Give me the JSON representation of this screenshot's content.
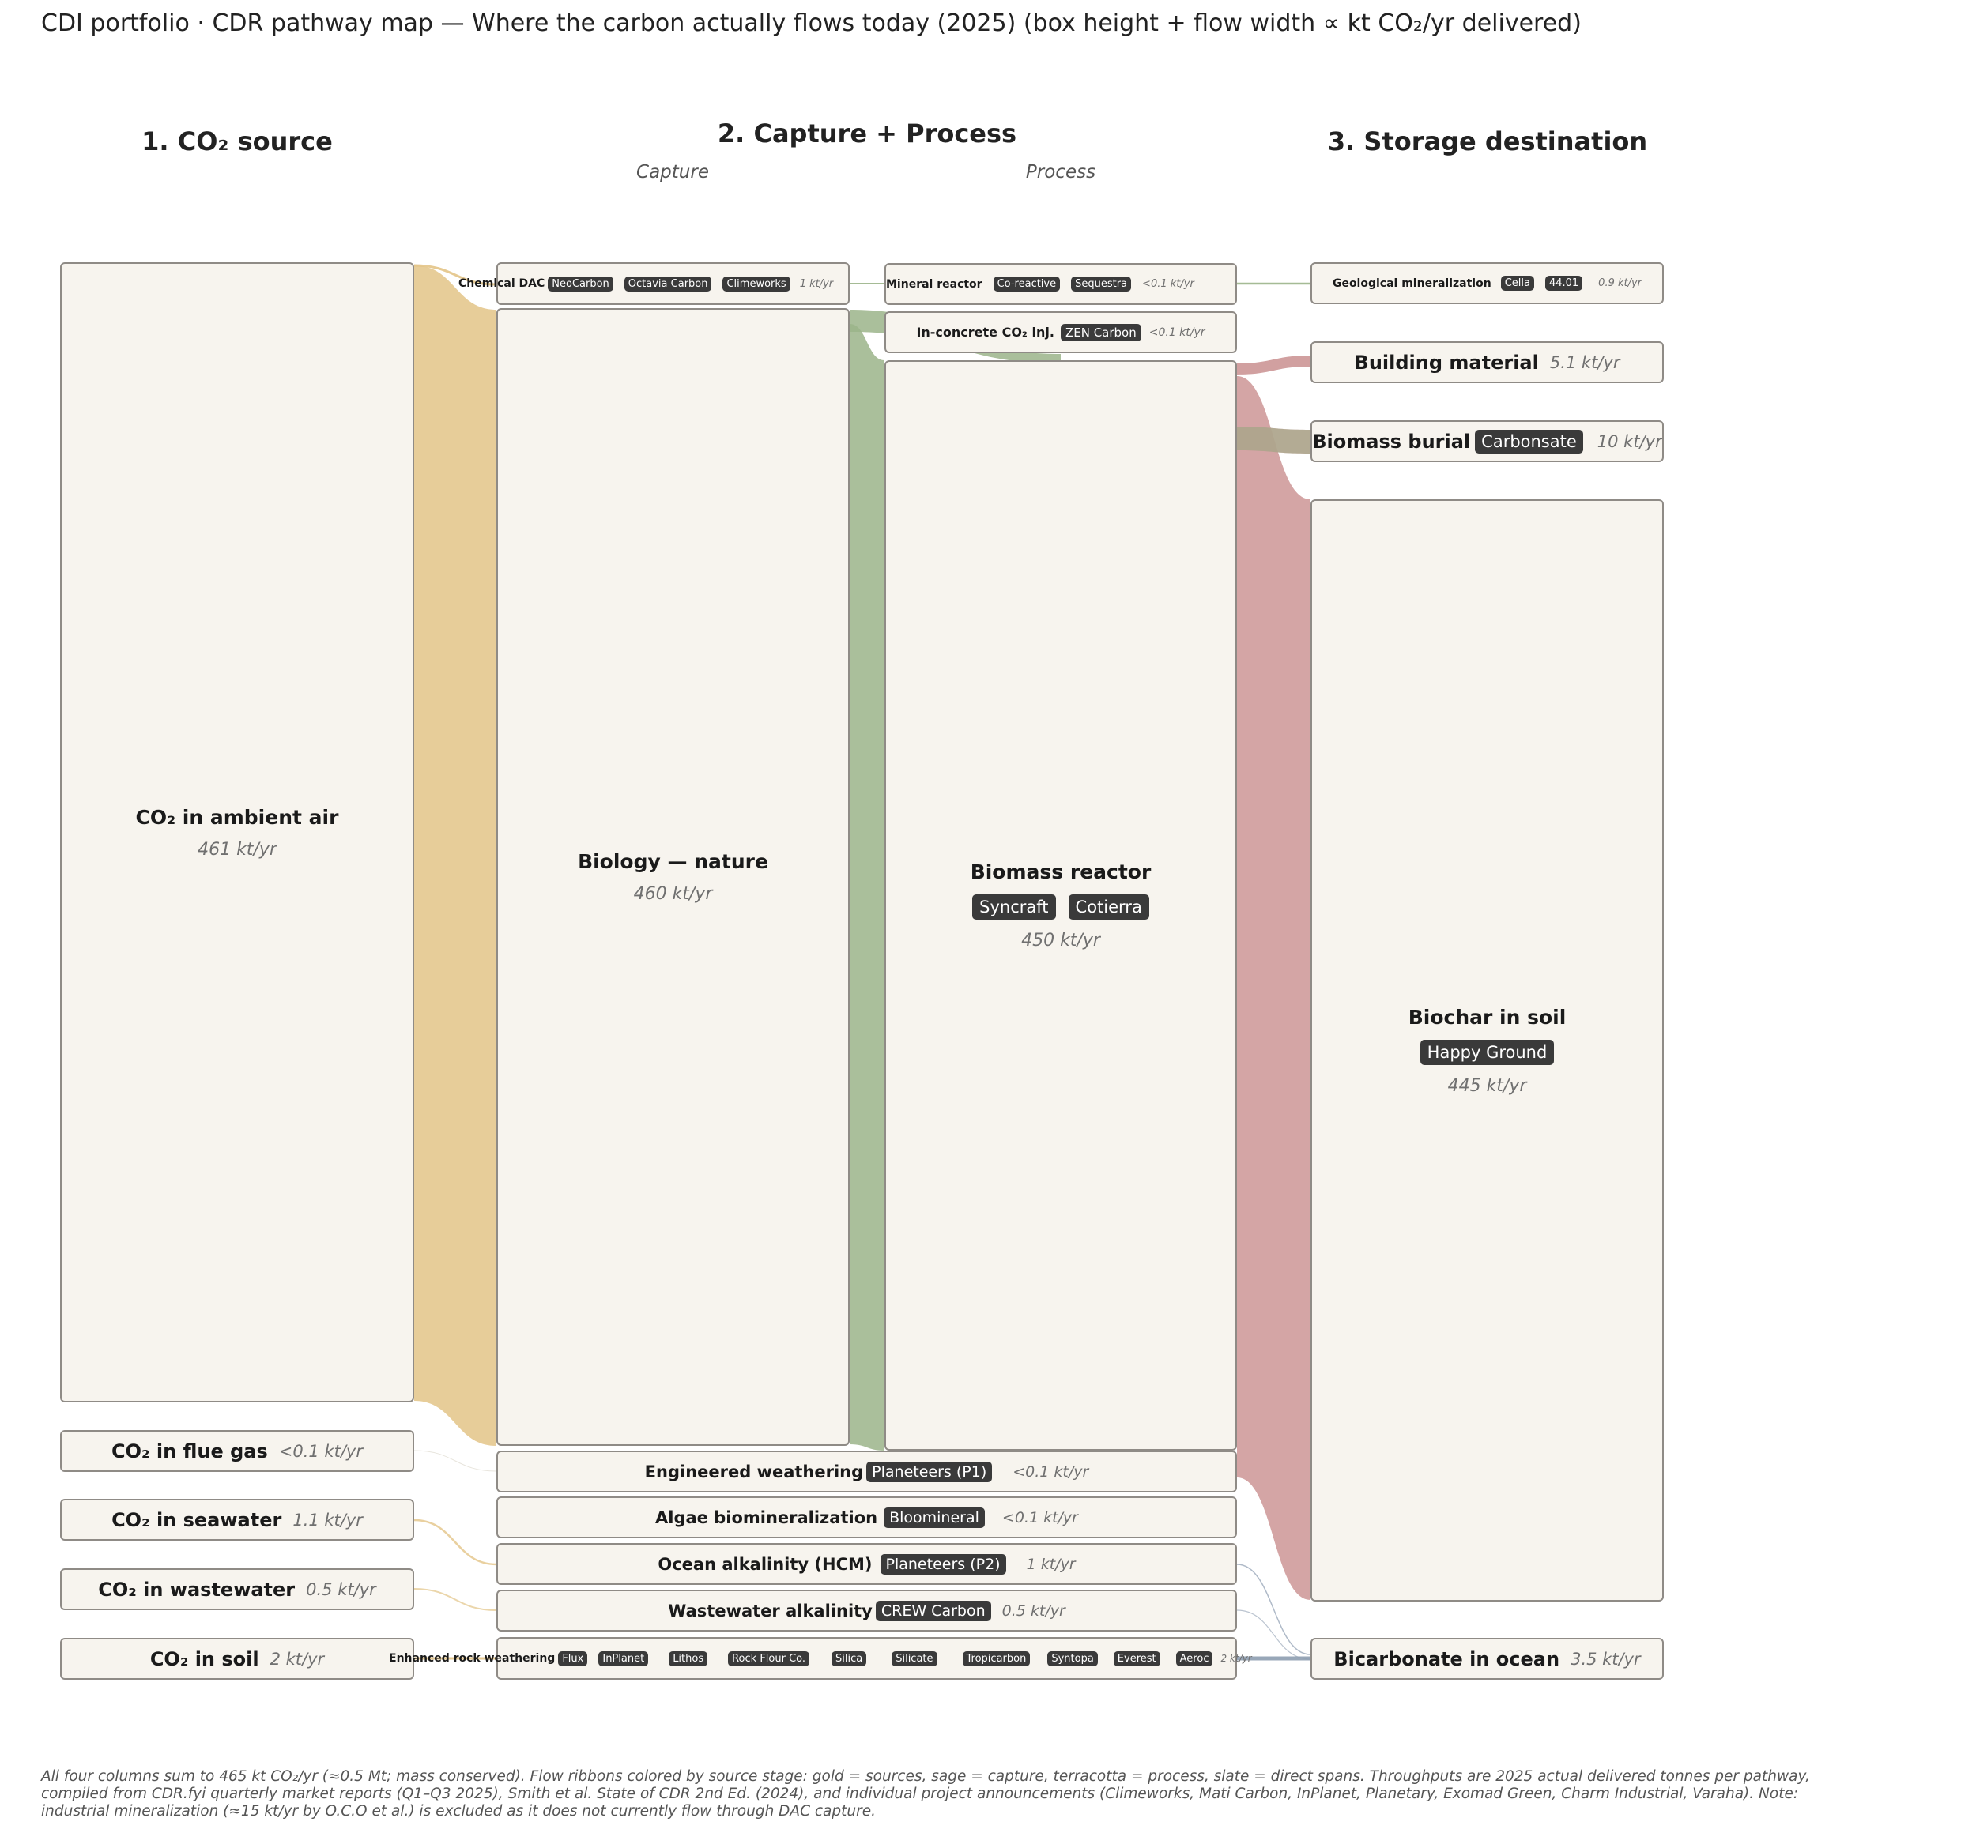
{
  "title": "CDI portfolio  ·  CDR pathway map  —  Where the carbon actually flows today (2025)  (box height + flow width ∝ kt CO₂/yr delivered)",
  "columns": {
    "source": "1.  CO₂ source",
    "capture_process": "2.  Capture  +  Process",
    "capture_sub": "Capture",
    "process_sub": "Process",
    "storage": "3.  Storage destination"
  },
  "sources": [
    {
      "label": "CO₂ in ambient air",
      "value": "461 kt/yr"
    },
    {
      "label": "CO₂ in flue gas",
      "value": "<0.1 kt/yr"
    },
    {
      "label": "CO₂ in seawater",
      "value": "1.1 kt/yr"
    },
    {
      "label": "CO₂ in wastewater",
      "value": "0.5 kt/yr"
    },
    {
      "label": "CO₂ in soil",
      "value": "2 kt/yr"
    }
  ],
  "capture": [
    {
      "label": "Chemical DAC",
      "tags": [
        "NeoCarbon",
        "Octavia Carbon",
        "Climeworks"
      ],
      "value": "1 kt/yr"
    },
    {
      "label": "Biology — nature",
      "tags": [],
      "value": "460 kt/yr"
    }
  ],
  "process": [
    {
      "label": "Mineral reactor",
      "tags": [
        "Co-reactive",
        "Sequestra"
      ],
      "value": "<0.1 kt/yr"
    },
    {
      "label": "In-concrete CO₂ inj.",
      "tags": [
        "ZEN Carbon"
      ],
      "value": "<0.1 kt/yr"
    },
    {
      "label": "Biomass reactor",
      "tags": [
        "Syncraft",
        "Cotierra"
      ],
      "value": "450 kt/yr"
    }
  ],
  "spans": [
    {
      "label": "Engineered weathering",
      "tags": [
        "Planeteers (P1)"
      ],
      "value": "<0.1 kt/yr"
    },
    {
      "label": "Algae biomineralization",
      "tags": [
        "Bloomineral"
      ],
      "value": "<0.1 kt/yr"
    },
    {
      "label": "Ocean alkalinity (HCM)",
      "tags": [
        "Planeteers (P2)"
      ],
      "value": "1 kt/yr"
    },
    {
      "label": "Wastewater alkalinity",
      "tags": [
        "CREW Carbon"
      ],
      "value": "0.5 kt/yr"
    },
    {
      "label": "Enhanced rock weathering",
      "tags": [
        "Flux",
        "InPlanet",
        "Lithos",
        "Rock Flour Co.",
        "Silica",
        "Silicate",
        "Tropicarbon",
        "Syntopa",
        "Everest",
        "Aeroc"
      ],
      "value": "2 kt/yr"
    }
  ],
  "storage": [
    {
      "label": "Geological mineralization",
      "tags": [
        "Cella",
        "44.01"
      ],
      "value": "0.9 kt/yr"
    },
    {
      "label": "Building material",
      "tags": [],
      "value": "5.1 kt/yr"
    },
    {
      "label": "Biomass burial",
      "tags": [
        "Carbonsate"
      ],
      "value": "10 kt/yr"
    },
    {
      "label": "Biochar in soil",
      "tags": [
        "Happy Ground"
      ],
      "value": "445 kt/yr"
    },
    {
      "label": "Bicarbonate in ocean",
      "tags": [],
      "value": "3.5 kt/yr"
    }
  ],
  "colors": {
    "sources": "#e3c487",
    "capture": "#9bb48a",
    "process": "#c98f8f",
    "direct": "#8d9db0"
  },
  "footnote": [
    "All four columns sum to 465 kt CO₂/yr (≈0.5 Mt; mass conserved).  Flow ribbons colored by source stage:  gold = sources, sage = capture, terracotta = process, slate = direct spans.  Throughputs are 2025 actual delivered tonnes per pathway,",
    "compiled from CDR.fyi quarterly market reports (Q1–Q3 2025), Smith et al. State of CDR 2nd Ed. (2024), and individual project announcements (Climeworks, Mati Carbon, InPlanet, Planetary, Exomad Green, Charm Industrial, Varaha).  Note:",
    "industrial mineralization (≈15 kt/yr by O.C.O et al.) is excluded as it does not currently flow through DAC capture."
  ]
}
